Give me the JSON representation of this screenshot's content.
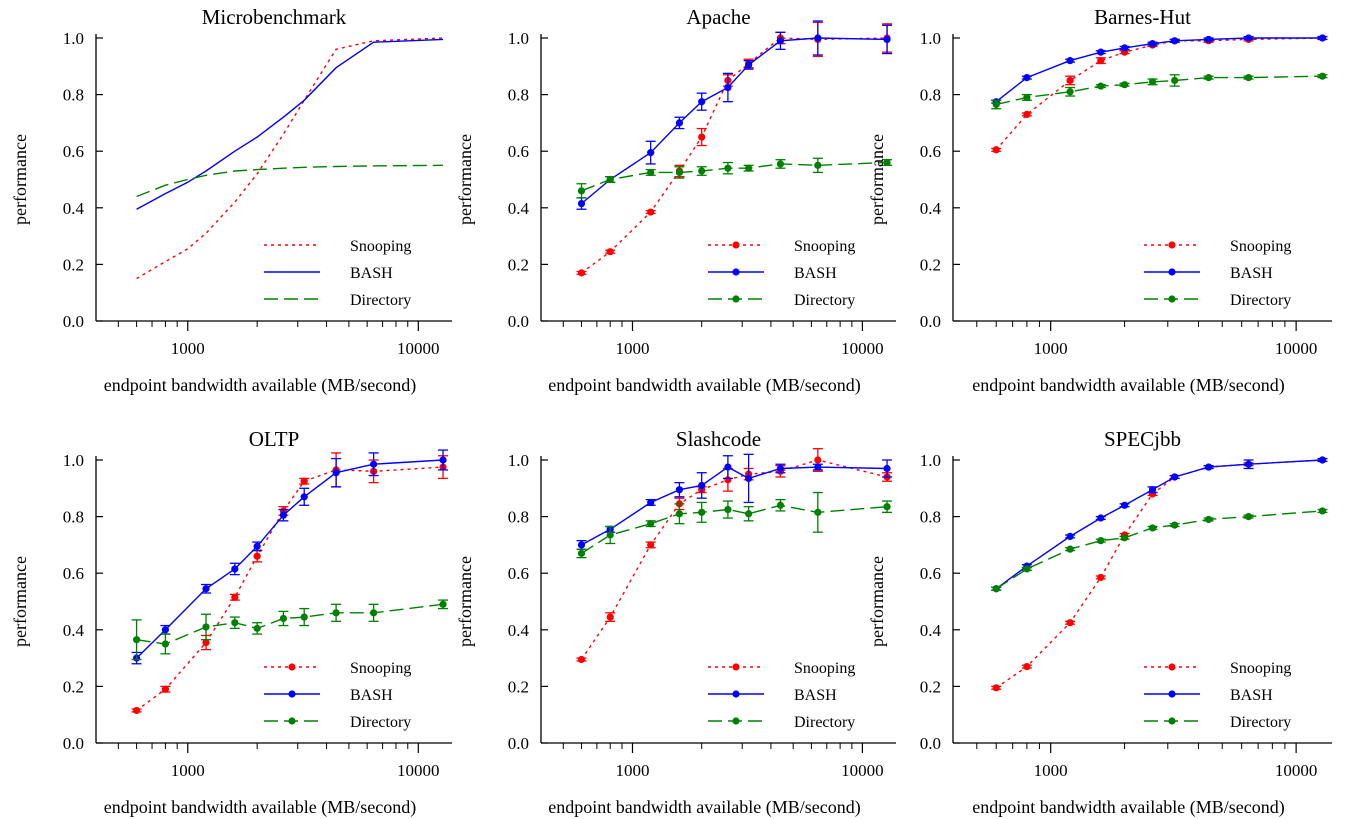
{
  "figure": {
    "xlabel": "endpoint bandwidth available (MB/second)",
    "ylabel": "performance"
  },
  "chart_data": [
    {
      "type": "line",
      "title": "Microbenchmark",
      "xlabel": "endpoint bandwidth available (MB/second)",
      "ylabel": "performance",
      "xscale": "log",
      "xlim": [
        400,
        14000
      ],
      "ylim": [
        0,
        1.0
      ],
      "xticks": [
        1000,
        10000
      ],
      "xtick_labels": [
        "1000",
        "10000"
      ],
      "yticks": [
        0.0,
        0.2,
        0.4,
        0.6,
        0.8,
        1.0
      ],
      "ytick_labels": [
        "0.0",
        "0.2",
        "0.4",
        "0.6",
        "0.8",
        "1.0"
      ],
      "legend_position": "bottom-right",
      "markers": false,
      "series": [
        {
          "name": "Snooping",
          "color": "#ff0000",
          "dash": "dotted",
          "x": [
            600,
            800,
            1000,
            1200,
            1600,
            2000,
            2600,
            3200,
            4400,
            6400,
            12800
          ],
          "y": [
            0.15,
            0.21,
            0.255,
            0.31,
            0.42,
            0.52,
            0.66,
            0.78,
            0.96,
            0.99,
            1.0
          ]
        },
        {
          "name": "BASH",
          "color": "#0000ff",
          "dash": "solid",
          "x": [
            600,
            800,
            1000,
            1200,
            1600,
            2000,
            2600,
            3200,
            4400,
            6400,
            12800
          ],
          "y": [
            0.395,
            0.45,
            0.49,
            0.53,
            0.6,
            0.65,
            0.72,
            0.78,
            0.895,
            0.985,
            0.995
          ]
        },
        {
          "name": "Directory",
          "color": "#008000",
          "dash": "dashed",
          "x": [
            600,
            800,
            1000,
            1200,
            1600,
            2000,
            2600,
            3200,
            4400,
            6400,
            12800
          ],
          "y": [
            0.44,
            0.48,
            0.5,
            0.515,
            0.53,
            0.535,
            0.54,
            0.543,
            0.546,
            0.548,
            0.55
          ]
        }
      ]
    },
    {
      "type": "line",
      "title": "Apache",
      "xlabel": "endpoint bandwidth available (MB/second)",
      "ylabel": "performance",
      "xscale": "log",
      "xlim": [
        400,
        14000
      ],
      "ylim": [
        0,
        1.0
      ],
      "xticks": [
        1000,
        10000
      ],
      "xtick_labels": [
        "1000",
        "10000"
      ],
      "yticks": [
        0.0,
        0.2,
        0.4,
        0.6,
        0.8,
        1.0
      ],
      "ytick_labels": [
        "0.0",
        "0.2",
        "0.4",
        "0.6",
        "0.8",
        "1.0"
      ],
      "legend_position": "bottom-right",
      "markers": true,
      "series": [
        {
          "name": "Snooping",
          "color": "#ff0000",
          "dash": "dotted",
          "x": [
            600,
            800,
            1200,
            1600,
            2000,
            2600,
            3200,
            4400,
            6400,
            12800
          ],
          "y": [
            0.17,
            0.245,
            0.385,
            0.53,
            0.65,
            0.85,
            0.91,
            1.0,
            0.995,
            1.0
          ],
          "err": [
            0.005,
            0.005,
            0.005,
            0.02,
            0.03,
            0.02,
            0.015,
            0.02,
            0.06,
            0.05
          ]
        },
        {
          "name": "BASH",
          "color": "#0000ff",
          "dash": "solid",
          "x": [
            600,
            800,
            1200,
            1600,
            2000,
            2600,
            3200,
            4400,
            6400,
            12800
          ],
          "y": [
            0.415,
            0.5,
            0.595,
            0.7,
            0.775,
            0.825,
            0.905,
            0.99,
            1.0,
            0.995
          ],
          "err": [
            0.02,
            0.01,
            0.04,
            0.02,
            0.03,
            0.05,
            0.015,
            0.03,
            0.06,
            0.05
          ]
        },
        {
          "name": "Directory",
          "color": "#008000",
          "dash": "dashed",
          "x": [
            600,
            800,
            1200,
            1600,
            2000,
            2600,
            3200,
            4400,
            6400,
            12800
          ],
          "y": [
            0.46,
            0.5,
            0.525,
            0.525,
            0.53,
            0.54,
            0.54,
            0.555,
            0.55,
            0.56
          ],
          "err": [
            0.025,
            0.01,
            0.01,
            0.02,
            0.015,
            0.02,
            0.01,
            0.015,
            0.025,
            0.01
          ]
        }
      ]
    },
    {
      "type": "line",
      "title": "Barnes-Hut",
      "xlabel": "endpoint bandwidth available (MB/second)",
      "ylabel": "performance",
      "xscale": "log",
      "xlim": [
        400,
        14000
      ],
      "ylim": [
        0,
        1.0
      ],
      "xticks": [
        1000,
        10000
      ],
      "xtick_labels": [
        "1000",
        "10000"
      ],
      "yticks": [
        0.0,
        0.2,
        0.4,
        0.6,
        0.8,
        1.0
      ],
      "ytick_labels": [
        "0.0",
        "0.2",
        "0.4",
        "0.6",
        "0.8",
        "1.0"
      ],
      "legend_position": "bottom-right",
      "markers": true,
      "series": [
        {
          "name": "Snooping",
          "color": "#ff0000",
          "dash": "dotted",
          "x": [
            600,
            800,
            1200,
            1600,
            2000,
            2600,
            3200,
            4400,
            6400,
            12800
          ],
          "y": [
            0.605,
            0.73,
            0.85,
            0.92,
            0.95,
            0.975,
            0.99,
            0.99,
            0.995,
            1.0
          ],
          "err": [
            0.005,
            0.005,
            0.015,
            0.01,
            0.005,
            0.005,
            0.005,
            0.005,
            0.005,
            0.005
          ]
        },
        {
          "name": "BASH",
          "color": "#0000ff",
          "dash": "solid",
          "x": [
            600,
            800,
            1200,
            1600,
            2000,
            2600,
            3200,
            4400,
            6400,
            12800
          ],
          "y": [
            0.775,
            0.86,
            0.92,
            0.95,
            0.965,
            0.98,
            0.99,
            0.995,
            1.0,
            1.0
          ],
          "err": [
            0.005,
            0.005,
            0.005,
            0.005,
            0.005,
            0.005,
            0.005,
            0.005,
            0.005,
            0.005
          ]
        },
        {
          "name": "Directory",
          "color": "#008000",
          "dash": "dashed",
          "x": [
            600,
            800,
            1200,
            1600,
            2000,
            2600,
            3200,
            4400,
            6400,
            12800
          ],
          "y": [
            0.765,
            0.79,
            0.81,
            0.83,
            0.835,
            0.845,
            0.85,
            0.86,
            0.86,
            0.865
          ],
          "err": [
            0.015,
            0.01,
            0.015,
            0.005,
            0.005,
            0.01,
            0.02,
            0.005,
            0.005,
            0.005
          ]
        }
      ]
    },
    {
      "type": "line",
      "title": "OLTP",
      "xlabel": "endpoint bandwidth available (MB/second)",
      "ylabel": "performance",
      "xscale": "log",
      "xlim": [
        400,
        14000
      ],
      "ylim": [
        0,
        1.0
      ],
      "xticks": [
        1000,
        10000
      ],
      "xtick_labels": [
        "1000",
        "10000"
      ],
      "yticks": [
        0.0,
        0.2,
        0.4,
        0.6,
        0.8,
        1.0
      ],
      "ytick_labels": [
        "0.0",
        "0.2",
        "0.4",
        "0.6",
        "0.8",
        "1.0"
      ],
      "legend_position": "bottom-right",
      "markers": true,
      "series": [
        {
          "name": "Snooping",
          "color": "#ff0000",
          "dash": "dotted",
          "x": [
            600,
            800,
            1200,
            1600,
            2000,
            2600,
            3200,
            4400,
            6400,
            12800
          ],
          "y": [
            0.115,
            0.19,
            0.355,
            0.515,
            0.66,
            0.82,
            0.925,
            0.965,
            0.96,
            0.975
          ],
          "err": [
            0.005,
            0.01,
            0.025,
            0.01,
            0.02,
            0.015,
            0.01,
            0.06,
            0.04,
            0.04
          ]
        },
        {
          "name": "BASH",
          "color": "#0000ff",
          "dash": "solid",
          "x": [
            600,
            800,
            1200,
            1600,
            2000,
            2600,
            3200,
            4400,
            6400,
            12800
          ],
          "y": [
            0.3,
            0.4,
            0.545,
            0.615,
            0.695,
            0.805,
            0.87,
            0.955,
            0.985,
            1.0
          ],
          "err": [
            0.02,
            0.015,
            0.015,
            0.02,
            0.015,
            0.02,
            0.03,
            0.05,
            0.04,
            0.035
          ]
        },
        {
          "name": "Directory",
          "color": "#008000",
          "dash": "dashed",
          "x": [
            600,
            800,
            1200,
            1600,
            2000,
            2600,
            3200,
            4400,
            6400,
            12800
          ],
          "y": [
            0.365,
            0.35,
            0.41,
            0.425,
            0.405,
            0.44,
            0.445,
            0.46,
            0.46,
            0.49
          ],
          "err": [
            0.07,
            0.035,
            0.045,
            0.02,
            0.02,
            0.025,
            0.03,
            0.03,
            0.03,
            0.015
          ]
        }
      ]
    },
    {
      "type": "line",
      "title": "Slashcode",
      "xlabel": "endpoint bandwidth available (MB/second)",
      "ylabel": "performance",
      "xscale": "log",
      "xlim": [
        400,
        14000
      ],
      "ylim": [
        0,
        1.0
      ],
      "xticks": [
        1000,
        10000
      ],
      "xtick_labels": [
        "1000",
        "10000"
      ],
      "yticks": [
        0.0,
        0.2,
        0.4,
        0.6,
        0.8,
        1.0
      ],
      "ytick_labels": [
        "0.0",
        "0.2",
        "0.4",
        "0.6",
        "0.8",
        "1.0"
      ],
      "legend_position": "bottom-right",
      "markers": true,
      "series": [
        {
          "name": "Snooping",
          "color": "#ff0000",
          "dash": "dotted",
          "x": [
            600,
            800,
            1200,
            1600,
            2000,
            2600,
            3200,
            4400,
            6400,
            12800
          ],
          "y": [
            0.295,
            0.445,
            0.7,
            0.845,
            0.895,
            0.93,
            0.95,
            0.96,
            1.0,
            0.94
          ],
          "err": [
            0.005,
            0.015,
            0.01,
            0.02,
            0.01,
            0.04,
            0.02,
            0.02,
            0.04,
            0.015
          ]
        },
        {
          "name": "BASH",
          "color": "#0000ff",
          "dash": "solid",
          "x": [
            600,
            800,
            1200,
            1600,
            2000,
            2600,
            3200,
            4400,
            6400,
            12800
          ],
          "y": [
            0.7,
            0.755,
            0.85,
            0.895,
            0.91,
            0.975,
            0.935,
            0.97,
            0.975,
            0.97
          ],
          "err": [
            0.015,
            0.01,
            0.01,
            0.025,
            0.045,
            0.04,
            0.085,
            0.015,
            0.01,
            0.03
          ]
        },
        {
          "name": "Directory",
          "color": "#008000",
          "dash": "dashed",
          "x": [
            600,
            800,
            1200,
            1600,
            2000,
            2600,
            3200,
            4400,
            6400,
            12800
          ],
          "y": [
            0.67,
            0.735,
            0.775,
            0.81,
            0.815,
            0.825,
            0.81,
            0.84,
            0.815,
            0.835
          ],
          "err": [
            0.015,
            0.03,
            0.01,
            0.035,
            0.035,
            0.03,
            0.025,
            0.02,
            0.07,
            0.02
          ]
        }
      ]
    },
    {
      "type": "line",
      "title": "SPECjbb",
      "xlabel": "endpoint bandwidth available (MB/second)",
      "ylabel": "performance",
      "xscale": "log",
      "xlim": [
        400,
        14000
      ],
      "ylim": [
        0,
        1.0
      ],
      "xticks": [
        1000,
        10000
      ],
      "xtick_labels": [
        "1000",
        "10000"
      ],
      "yticks": [
        0.0,
        0.2,
        0.4,
        0.6,
        0.8,
        1.0
      ],
      "ytick_labels": [
        "0.0",
        "0.2",
        "0.4",
        "0.6",
        "0.8",
        "1.0"
      ],
      "legend_position": "bottom-right",
      "markers": true,
      "series": [
        {
          "name": "Snooping",
          "color": "#ff0000",
          "dash": "dotted",
          "x": [
            600,
            800,
            1200,
            1600,
            2000,
            2600,
            3200,
            4400,
            6400,
            12800
          ],
          "y": [
            0.195,
            0.27,
            0.425,
            0.585,
            0.735,
            0.88,
            0.94,
            0.975,
            0.985,
            1.0
          ],
          "err": [
            0.005,
            0.005,
            0.005,
            0.005,
            0.005,
            0.005,
            0.005,
            0.005,
            0.005,
            0.005
          ]
        },
        {
          "name": "BASH",
          "color": "#0000ff",
          "dash": "solid",
          "x": [
            600,
            800,
            1200,
            1600,
            2000,
            2600,
            3200,
            4400,
            6400,
            12800
          ],
          "y": [
            0.545,
            0.625,
            0.73,
            0.795,
            0.84,
            0.895,
            0.94,
            0.975,
            0.985,
            1.0
          ],
          "err": [
            0.005,
            0.005,
            0.005,
            0.005,
            0.005,
            0.01,
            0.005,
            0.005,
            0.015,
            0.005
          ]
        },
        {
          "name": "Directory",
          "color": "#008000",
          "dash": "dashed",
          "x": [
            600,
            800,
            1200,
            1600,
            2000,
            2600,
            3200,
            4400,
            6400,
            12800
          ],
          "y": [
            0.545,
            0.615,
            0.685,
            0.715,
            0.725,
            0.76,
            0.77,
            0.79,
            0.8,
            0.82
          ],
          "err": [
            0.005,
            0.005,
            0.005,
            0.005,
            0.005,
            0.005,
            0.005,
            0.005,
            0.005,
            0.005
          ]
        }
      ]
    }
  ]
}
